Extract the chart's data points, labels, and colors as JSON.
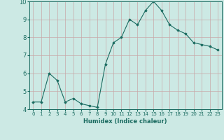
{
  "x": [
    0,
    1,
    2,
    3,
    4,
    5,
    6,
    7,
    8,
    9,
    10,
    11,
    12,
    13,
    14,
    15,
    16,
    17,
    18,
    19,
    20,
    21,
    22,
    23
  ],
  "y": [
    4.4,
    4.4,
    6.0,
    5.6,
    4.4,
    4.6,
    4.3,
    4.2,
    4.1,
    6.5,
    7.7,
    8.0,
    9.0,
    8.7,
    9.5,
    10.0,
    9.5,
    8.7,
    8.4,
    8.2,
    7.7,
    7.6,
    7.5,
    7.3
  ],
  "xlabel": "Humidex (Indice chaleur)",
  "ylim": [
    4.0,
    10.0
  ],
  "xlim": [
    -0.5,
    23.5
  ],
  "bg_color": "#cce9e4",
  "grid_color": "#c8a8a8",
  "line_color": "#1a6b60",
  "marker_color": "#1a6b60",
  "tick_label_color": "#1a6b60",
  "xlabel_color": "#1a6b60",
  "yticks": [
    4,
    5,
    6,
    7,
    8,
    9,
    10
  ],
  "xticks": [
    0,
    1,
    2,
    3,
    4,
    5,
    6,
    7,
    8,
    9,
    10,
    11,
    12,
    13,
    14,
    15,
    16,
    17,
    18,
    19,
    20,
    21,
    22,
    23
  ],
  "xtick_labels": [
    "0",
    "1",
    "2",
    "3",
    "4",
    "5",
    "6",
    "7",
    "8",
    "9",
    "10",
    "11",
    "12",
    "13",
    "14",
    "15",
    "16",
    "17",
    "18",
    "19",
    "20",
    "21",
    "22",
    "23"
  ]
}
